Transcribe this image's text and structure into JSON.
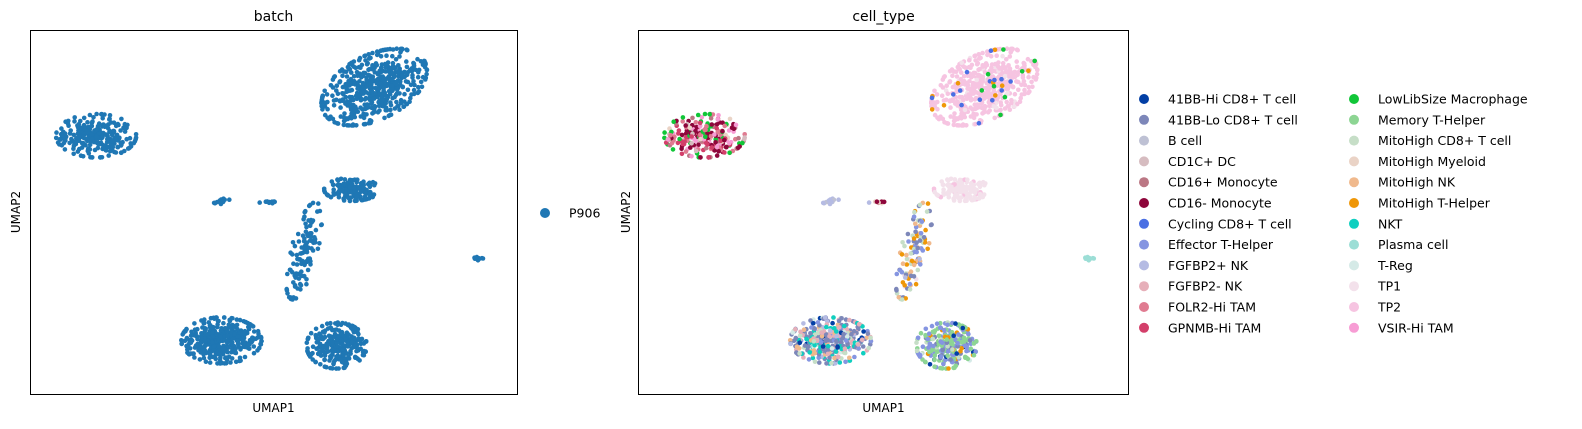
{
  "chart_data": [
    {
      "type": "scatter",
      "title": "batch",
      "xlabel": "UMAP1",
      "ylabel": "UMAP2",
      "xticks": false,
      "yticks": false,
      "grid": false,
      "legend_placement": "right",
      "legend": [
        {
          "label": "P906",
          "color": "#1f77b4"
        }
      ],
      "point_color": "#1f77b4",
      "clusters": [
        {
          "region": "left-island",
          "cx": -8.7,
          "cy": 5.3,
          "rx": 1.6,
          "ry": 0.85,
          "n": 240
        },
        {
          "region": "top-right-lobe",
          "cx": 2.4,
          "cy": 7.2,
          "rx": 1.9,
          "ry": 1.5,
          "n": 520
        },
        {
          "region": "mid-right-blob",
          "cx": 1.5,
          "cy": 3.2,
          "rx": 1.1,
          "ry": 0.45,
          "n": 160
        },
        {
          "region": "bottom-left-lobe",
          "cx": -3.7,
          "cy": -2.7,
          "rx": 1.6,
          "ry": 0.9,
          "n": 360
        },
        {
          "region": "bottom-right-lobe",
          "cx": 0.9,
          "cy": -2.9,
          "rx": 1.2,
          "ry": 0.9,
          "n": 260
        },
        {
          "region": "connecting-stem",
          "cx": -0.4,
          "cy": 0.8,
          "rx": 0.55,
          "ry": 1.9,
          "n": 120
        },
        {
          "region": "small-left-strand",
          "cx": -3.6,
          "cy": 2.75,
          "rx": 0.5,
          "ry": 0.12,
          "n": 16
        },
        {
          "region": "small-mid-strand",
          "cx": -1.8,
          "cy": 2.7,
          "rx": 0.4,
          "ry": 0.1,
          "n": 12
        },
        {
          "region": "far-right-islet",
          "cx": 6.6,
          "cy": 0.5,
          "rx": 0.25,
          "ry": 0.07,
          "n": 14
        }
      ]
    },
    {
      "type": "scatter",
      "title": "cell_type",
      "xlabel": "UMAP1",
      "ylabel": "UMAP2",
      "xticks": false,
      "yticks": false,
      "grid": false,
      "legend_placement": "right",
      "legend": [
        {
          "label": "41BB-Hi CD8+ T cell",
          "color": "#023fa5"
        },
        {
          "label": "41BB-Lo CD8+ T cell",
          "color": "#7d87b9"
        },
        {
          "label": "B cell",
          "color": "#bec1d4"
        },
        {
          "label": "CD1C+ DC",
          "color": "#d6bcc0"
        },
        {
          "label": "CD16+ Monocyte",
          "color": "#bb7784"
        },
        {
          "label": "CD16- Monocyte",
          "color": "#8e063b"
        },
        {
          "label": "Cycling CD8+ T cell",
          "color": "#4a6fe3"
        },
        {
          "label": "Effector T-Helper",
          "color": "#8595e1"
        },
        {
          "label": "FGFBP2+ NK",
          "color": "#b5bbe3"
        },
        {
          "label": "FGFBP2- NK",
          "color": "#e6afb9"
        },
        {
          "label": "FOLR2-Hi TAM",
          "color": "#e07b91"
        },
        {
          "label": "GPNMB-Hi TAM",
          "color": "#d33f6a"
        },
        {
          "label": "LowLibSize Macrophage",
          "color": "#11c638"
        },
        {
          "label": "Memory T-Helper",
          "color": "#8dd593"
        },
        {
          "label": "MitoHigh CD8+ T cell",
          "color": "#c6dec7"
        },
        {
          "label": "MitoHigh Myeloid",
          "color": "#ead3c6"
        },
        {
          "label": "MitoHigh NK",
          "color": "#f0b98d"
        },
        {
          "label": "MitoHigh T-Helper",
          "color": "#ef9708"
        },
        {
          "label": "NKT",
          "color": "#0fcfc0"
        },
        {
          "label": "Plasma cell",
          "color": "#9cded6"
        },
        {
          "label": "T-Reg",
          "color": "#d5eae7"
        },
        {
          "label": "TP1",
          "color": "#f3e1eb"
        },
        {
          "label": "TP2",
          "color": "#f6c4e1"
        },
        {
          "label": "VSIR-Hi TAM",
          "color": "#f79cd4"
        }
      ],
      "clusters": [
        {
          "region": "left-island",
          "cx": -8.7,
          "cy": 5.3,
          "rx": 1.6,
          "ry": 0.85,
          "n": 240,
          "mix": [
            [
              "CD16- Monocyte",
              0.25
            ],
            [
              "GPNMB-Hi TAM",
              0.18
            ],
            [
              "FOLR2-Hi TAM",
              0.15
            ],
            [
              "VSIR-Hi TAM",
              0.14
            ],
            [
              "LowLibSize Macrophage",
              0.12
            ],
            [
              "CD16+ Monocyte",
              0.08
            ],
            [
              "CD1C+ DC",
              0.05
            ],
            [
              "MitoHigh Myeloid",
              0.03
            ]
          ]
        },
        {
          "region": "top-right-lobe",
          "cx": 2.4,
          "cy": 7.2,
          "rx": 1.9,
          "ry": 1.5,
          "n": 520,
          "mix": [
            [
              "TP2",
              0.88
            ],
            [
              "TP1",
              0.05
            ],
            [
              "Cycling CD8+ T cell",
              0.03
            ],
            [
              "MitoHigh T-Helper",
              0.02
            ],
            [
              "LowLibSize Macrophage",
              0.02
            ]
          ]
        },
        {
          "region": "mid-right-blob",
          "cx": 1.5,
          "cy": 3.2,
          "rx": 1.1,
          "ry": 0.45,
          "n": 160,
          "mix": [
            [
              "TP1",
              0.85
            ],
            [
              "TP2",
              0.15
            ]
          ]
        },
        {
          "region": "bottom-left-lobe",
          "cx": -3.7,
          "cy": -2.7,
          "rx": 1.6,
          "ry": 0.9,
          "n": 360,
          "mix": [
            [
              "41BB-Lo CD8+ T cell",
              0.32
            ],
            [
              "FGFBP2- NK",
              0.16
            ],
            [
              "NKT",
              0.14
            ],
            [
              "41BB-Hi CD8+ T cell",
              0.08
            ],
            [
              "Effector T-Helper",
              0.08
            ],
            [
              "MitoHigh NK",
              0.07
            ],
            [
              "MitoHigh CD8+ T cell",
              0.07
            ],
            [
              "FGFBP2+ NK",
              0.04
            ],
            [
              "T-Reg",
              0.04
            ]
          ]
        },
        {
          "region": "bottom-right-lobe",
          "cx": 0.9,
          "cy": -2.9,
          "rx": 1.2,
          "ry": 0.9,
          "n": 260,
          "mix": [
            [
              "Memory T-Helper",
              0.42
            ],
            [
              "Effector T-Helper",
              0.28
            ],
            [
              "41BB-Lo CD8+ T cell",
              0.1
            ],
            [
              "MitoHigh T-Helper",
              0.06
            ],
            [
              "MitoHigh CD8+ T cell",
              0.06
            ],
            [
              "41BB-Hi CD8+ T cell",
              0.04
            ],
            [
              "T-Reg",
              0.04
            ]
          ]
        },
        {
          "region": "connecting-stem",
          "cx": -0.4,
          "cy": 0.8,
          "rx": 0.55,
          "ry": 1.9,
          "n": 120,
          "mix": [
            [
              "MitoHigh T-Helper",
              0.3
            ],
            [
              "41BB-Lo CD8+ T cell",
              0.2
            ],
            [
              "MitoHigh CD8+ T cell",
              0.15
            ],
            [
              "MitoHigh NK",
              0.1
            ],
            [
              "TP1",
              0.1
            ],
            [
              "Effector T-Helper",
              0.1
            ],
            [
              "FGFBP2+ NK",
              0.05
            ]
          ]
        },
        {
          "region": "small-left-strand",
          "cx": -3.6,
          "cy": 2.75,
          "rx": 0.5,
          "ry": 0.12,
          "n": 16,
          "mix": [
            [
              "FGFBP2+ NK",
              0.7
            ],
            [
              "B cell",
              0.3
            ]
          ]
        },
        {
          "region": "small-mid-strand",
          "cx": -1.8,
          "cy": 2.7,
          "rx": 0.4,
          "ry": 0.1,
          "n": 12,
          "mix": [
            [
              "MitoHigh Myeloid",
              0.5
            ],
            [
              "CD16- Monocyte",
              0.2
            ],
            [
              "LowLibSize Macrophage",
              0.15
            ],
            [
              "FGFBP2+ NK",
              0.15
            ]
          ]
        },
        {
          "region": "far-right-islet",
          "cx": 6.6,
          "cy": 0.5,
          "rx": 0.25,
          "ry": 0.07,
          "n": 14,
          "mix": [
            [
              "Plasma cell",
              1.0
            ]
          ]
        }
      ]
    }
  ]
}
